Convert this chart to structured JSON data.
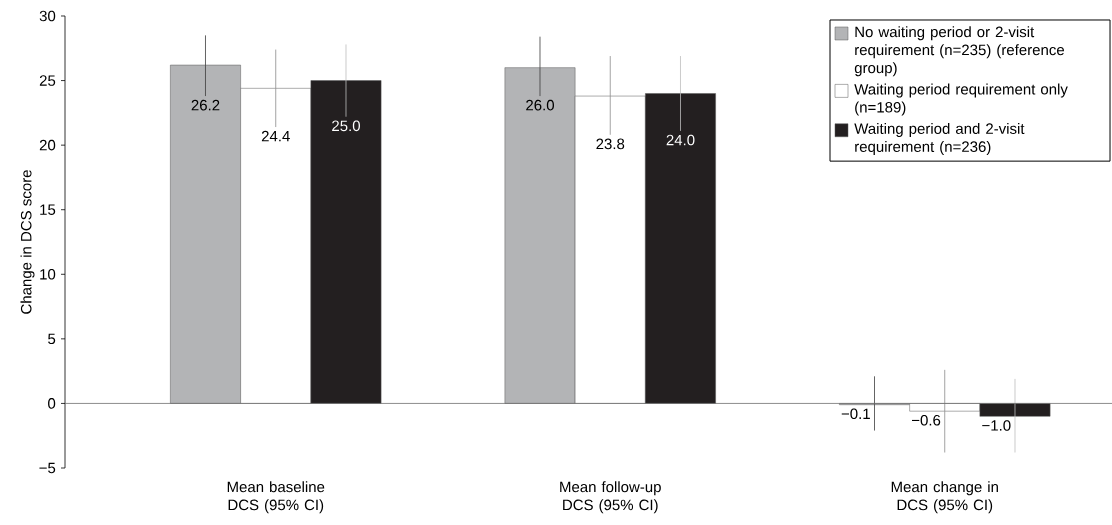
{
  "chart_data": {
    "type": "bar",
    "ylabel": "Change in DCS score",
    "categories": [
      "Mean baseline DCS (95% CI)",
      "Mean follow-up DCS (95% CI)",
      "Mean change in DCS (95% CI)"
    ],
    "series": [
      {
        "name": "No waiting period or 2-visit requirement (n=235) (reference group)",
        "color": "#b3b4b6",
        "values": [
          26.2,
          26.0,
          -0.1
        ],
        "value_labels": [
          "26.2",
          "26.0",
          "−0.1"
        ],
        "errors": [
          [
            23.8,
            28.5
          ],
          [
            23.8,
            28.4
          ],
          [
            -2.1,
            2.1
          ]
        ]
      },
      {
        "name": "Waiting period requirement only (n=189)",
        "color": "#ffffff",
        "values": [
          24.4,
          23.8,
          -0.6
        ],
        "value_labels": [
          "24.4",
          "23.8",
          "−0.6"
        ],
        "errors": [
          [
            21.4,
            27.4
          ],
          [
            20.8,
            26.9
          ],
          [
            -3.8,
            2.6
          ]
        ]
      },
      {
        "name": "Waiting period and 2-visit requirement (n=236)",
        "color": "#231f20",
        "values": [
          25.0,
          24.0,
          -1.0
        ],
        "value_labels": [
          "25.0",
          "24.0",
          "−1.0"
        ],
        "errors": [
          [
            22.2,
            27.8
          ],
          [
            21.1,
            26.9
          ],
          [
            -3.8,
            1.9
          ]
        ]
      }
    ],
    "ylim": [
      -5,
      30
    ],
    "yticks": [
      {
        "value": -5,
        "label": "−5"
      },
      0,
      5,
      10,
      15,
      20,
      25,
      30
    ],
    "legend": "top right"
  }
}
